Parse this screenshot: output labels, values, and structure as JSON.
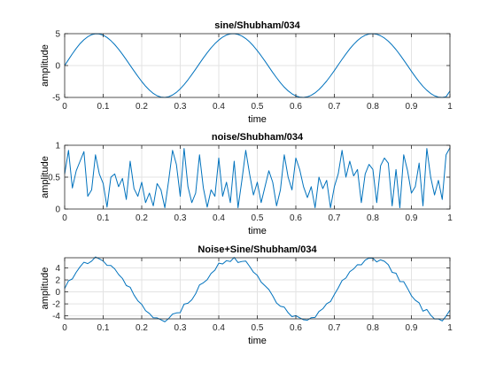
{
  "chart_data": [
    {
      "type": "line",
      "title": "sine/Shubham/034",
      "xlabel": "time",
      "ylabel": "amplitude",
      "xlim": [
        0,
        1
      ],
      "ylim": [
        -5,
        5
      ],
      "xticks": [
        "0",
        "0.1",
        "0.2",
        "0.3",
        "0.4",
        "0.5",
        "0.6",
        "0.7",
        "0.8",
        "0.9",
        "1"
      ],
      "yticks": [
        "-5",
        "0",
        "5"
      ],
      "grid": true,
      "line_color": "#0072bd",
      "x": [
        0,
        0.01,
        0.02,
        0.03,
        0.04,
        0.05,
        0.06,
        0.07,
        0.08,
        0.09,
        0.1,
        0.11,
        0.12,
        0.13,
        0.14,
        0.15,
        0.16,
        0.17,
        0.18,
        0.19,
        0.2,
        0.21,
        0.22,
        0.23,
        0.24,
        0.25,
        0.26,
        0.27,
        0.28,
        0.29,
        0.3,
        0.31,
        0.32,
        0.33,
        0.34,
        0.35,
        0.36,
        0.37,
        0.38,
        0.39,
        0.4,
        0.41,
        0.42,
        0.43,
        0.44,
        0.45,
        0.46,
        0.47,
        0.48,
        0.49,
        0.5,
        0.51,
        0.52,
        0.53,
        0.54,
        0.55,
        0.56,
        0.57,
        0.58,
        0.59,
        0.6,
        0.61,
        0.62,
        0.63,
        0.64,
        0.65,
        0.66,
        0.67,
        0.68,
        0.69,
        0.7,
        0.71,
        0.72,
        0.73,
        0.74,
        0.75,
        0.76,
        0.77,
        0.78,
        0.79,
        0.8,
        0.81,
        0.82,
        0.83,
        0.84,
        0.85,
        0.86,
        0.87,
        0.88,
        0.89,
        0.9,
        0.91,
        0.92,
        0.93,
        0.94,
        0.95,
        0.96,
        0.97,
        0.98,
        0.99,
        1
      ],
      "y": [
        0,
        0.93,
        1.84,
        2.68,
        3.44,
        4.05,
        4.52,
        4.84,
        4.98,
        4.95,
        4.76,
        4.4,
        3.9,
        3.28,
        2.56,
        1.76,
        0.91,
        0.03,
        -0.84,
        -1.69,
        -2.5,
        -3.23,
        -3.85,
        -4.37,
        -4.74,
        -4.95,
        -5.0,
        -4.89,
        -4.62,
        -4.21,
        -3.66,
        -2.99,
        -2.24,
        -1.42,
        -0.56,
        0.32,
        1.19,
        2.01,
        2.77,
        3.43,
        4.0,
        4.46,
        4.79,
        4.97,
        5.0,
        4.88,
        4.63,
        4.23,
        3.71,
        3.07,
        2.34,
        1.53,
        0.68,
        -0.2,
        -1.08,
        -1.91,
        -2.7,
        -3.39,
        -3.97,
        -4.43,
        -4.76,
        -4.95,
        -5.0,
        -4.9,
        -4.66,
        -4.28,
        -3.77,
        -3.14,
        -2.43,
        -1.63,
        -0.79,
        0.1,
        0.97,
        1.82,
        2.62,
        3.31,
        3.92,
        4.41,
        4.75,
        4.95,
        5.0,
        4.9,
        4.67,
        4.31,
        3.82,
        3.21,
        2.5,
        1.71,
        0.86,
        -0.01,
        -0.89,
        -1.74,
        -2.55,
        -3.27,
        -3.88,
        -4.38,
        -4.74,
        -4.95,
        -5.0,
        -4.89,
        -4.0
      ]
    },
    {
      "type": "line",
      "title": "noise/Shubham/034",
      "xlabel": "time",
      "ylabel": "amplitude",
      "xlim": [
        0,
        1
      ],
      "ylim": [
        0,
        1
      ],
      "xticks": [
        "0",
        "0.1",
        "0.2",
        "0.3",
        "0.4",
        "0.5",
        "0.6",
        "0.7",
        "0.8",
        "0.9",
        "1"
      ],
      "yticks": [
        "0",
        "0.5",
        "1"
      ],
      "grid": true,
      "line_color": "#0072bd",
      "x": [
        0,
        0.01,
        0.02,
        0.03,
        0.04,
        0.05,
        0.06,
        0.07,
        0.08,
        0.09,
        0.1,
        0.11,
        0.12,
        0.13,
        0.14,
        0.15,
        0.16,
        0.17,
        0.18,
        0.19,
        0.2,
        0.21,
        0.22,
        0.23,
        0.24,
        0.25,
        0.26,
        0.27,
        0.28,
        0.29,
        0.3,
        0.31,
        0.32,
        0.33,
        0.34,
        0.35,
        0.36,
        0.37,
        0.38,
        0.39,
        0.4,
        0.41,
        0.42,
        0.43,
        0.44,
        0.45,
        0.46,
        0.47,
        0.48,
        0.49,
        0.5,
        0.51,
        0.52,
        0.53,
        0.54,
        0.55,
        0.56,
        0.57,
        0.58,
        0.59,
        0.6,
        0.61,
        0.62,
        0.63,
        0.64,
        0.65,
        0.66,
        0.67,
        0.68,
        0.69,
        0.7,
        0.71,
        0.72,
        0.73,
        0.74,
        0.75,
        0.76,
        0.77,
        0.78,
        0.79,
        0.8,
        0.81,
        0.82,
        0.83,
        0.84,
        0.85,
        0.86,
        0.87,
        0.88,
        0.89,
        0.9,
        0.91,
        0.92,
        0.93,
        0.94,
        0.95,
        0.96,
        0.97,
        0.98,
        0.99,
        1
      ],
      "y": [
        0.55,
        0.92,
        0.33,
        0.6,
        0.75,
        0.9,
        0.2,
        0.3,
        0.85,
        0.55,
        0.4,
        0.03,
        0.5,
        0.55,
        0.35,
        0.48,
        0.15,
        0.75,
        0.32,
        0.2,
        0.42,
        0.1,
        0.25,
        0.05,
        0.4,
        0.3,
        0.02,
        0.45,
        0.92,
        0.7,
        0.2,
        0.95,
        0.35,
        0.1,
        0.25,
        0.85,
        0.33,
        0.03,
        0.3,
        0.2,
        0.8,
        0.2,
        0.42,
        0.1,
        0.75,
        0.02,
        0.45,
        0.92,
        0.55,
        0.22,
        0.42,
        0.1,
        0.35,
        0.6,
        0.42,
        0.05,
        0.3,
        0.85,
        0.5,
        0.3,
        0.8,
        0.62,
        0.35,
        0.18,
        0.35,
        0.02,
        0.5,
        0.32,
        0.45,
        0.02,
        0.35,
        0.55,
        0.92,
        0.5,
        0.75,
        0.52,
        0.62,
        0.1,
        0.55,
        0.7,
        0.62,
        0.1,
        0.68,
        0.8,
        0.72,
        0.05,
        0.62,
        0.02,
        0.85,
        0.6,
        0.25,
        0.35,
        0.72,
        0.05,
        0.95,
        0.5,
        0.22,
        0.45,
        0.15,
        0.85,
        0.96
      ]
    },
    {
      "type": "line",
      "title": "Noise+Sine/Shubham/034",
      "xlabel": "time",
      "ylabel": "amplitude",
      "xlim": [
        0,
        1
      ],
      "ylim": [
        -4.5,
        5.7
      ],
      "xticks": [
        "0",
        "0.1",
        "0.2",
        "0.3",
        "0.4",
        "0.5",
        "0.6",
        "0.7",
        "0.8",
        "0.9",
        "1"
      ],
      "yticks": [
        "-4",
        "-2",
        "0",
        "2",
        "4"
      ],
      "grid": true,
      "line_color": "#0072bd",
      "x": [
        0,
        0.01,
        0.02,
        0.03,
        0.04,
        0.05,
        0.06,
        0.07,
        0.08,
        0.09,
        0.1,
        0.11,
        0.12,
        0.13,
        0.14,
        0.15,
        0.16,
        0.17,
        0.18,
        0.19,
        0.2,
        0.21,
        0.22,
        0.23,
        0.24,
        0.25,
        0.26,
        0.27,
        0.28,
        0.29,
        0.3,
        0.31,
        0.32,
        0.33,
        0.34,
        0.35,
        0.36,
        0.37,
        0.38,
        0.39,
        0.4,
        0.41,
        0.42,
        0.43,
        0.44,
        0.45,
        0.46,
        0.47,
        0.48,
        0.49,
        0.5,
        0.51,
        0.52,
        0.53,
        0.54,
        0.55,
        0.56,
        0.57,
        0.58,
        0.59,
        0.6,
        0.61,
        0.62,
        0.63,
        0.64,
        0.65,
        0.66,
        0.67,
        0.68,
        0.69,
        0.7,
        0.71,
        0.72,
        0.73,
        0.74,
        0.75,
        0.76,
        0.77,
        0.78,
        0.79,
        0.8,
        0.81,
        0.82,
        0.83,
        0.84,
        0.85,
        0.86,
        0.87,
        0.88,
        0.89,
        0.9,
        0.91,
        0.92,
        0.93,
        0.94,
        0.95,
        0.96,
        0.97,
        0.98,
        0.99,
        1
      ],
      "y": [
        0.55,
        1.85,
        2.17,
        3.28,
        4.19,
        4.95,
        4.72,
        5.14,
        5.83,
        5.5,
        5.16,
        4.43,
        4.4,
        3.83,
        2.91,
        2.24,
        1.06,
        0.78,
        -0.52,
        -1.49,
        -2.08,
        -3.13,
        -3.6,
        -4.32,
        -4.34,
        -4.65,
        -4.98,
        -4.44,
        -3.7,
        -3.51,
        -3.46,
        -2.04,
        -1.89,
        -1.32,
        -0.31,
        1.17,
        1.52,
        2.04,
        3.07,
        3.63,
        4.8,
        4.66,
        5.21,
        5.07,
        5.75,
        4.9,
        5.08,
        5.15,
        4.26,
        3.29,
        2.76,
        1.63,
        1.03,
        0.4,
        -0.66,
        -1.86,
        -2.4,
        -2.54,
        -3.47,
        -4.13,
        -3.96,
        -4.33,
        -4.65,
        -4.72,
        -4.31,
        -4.26,
        -3.27,
        -2.82,
        -1.98,
        -1.61,
        -0.44,
        0.65,
        1.89,
        2.32,
        3.37,
        3.83,
        4.54,
        4.51,
        5.3,
        5.65,
        5.62,
        5.0,
        5.35,
        5.11,
        4.54,
        3.26,
        3.12,
        1.73,
        1.71,
        0.59,
        -0.64,
        -1.39,
        -1.83,
        -3.22,
        -2.93,
        -3.88,
        -4.52,
        -4.5,
        -4.85,
        -4.04,
        -3.04
      ]
    }
  ]
}
